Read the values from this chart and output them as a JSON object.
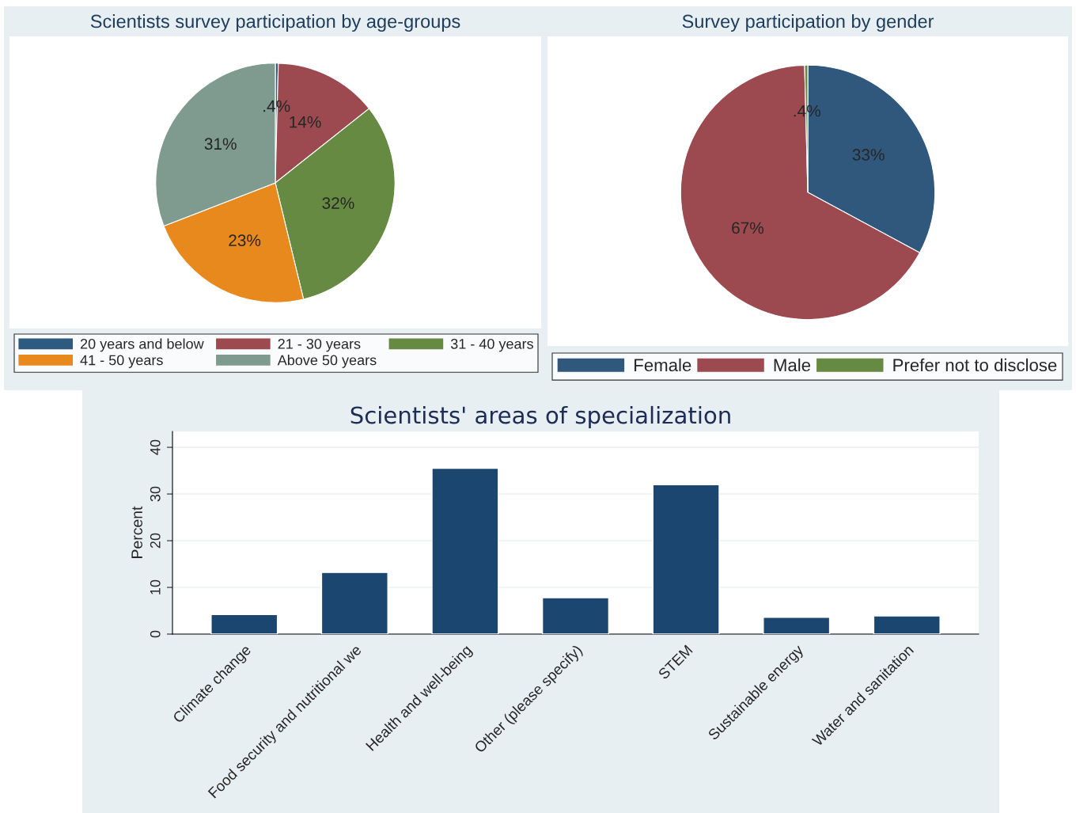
{
  "chart_data": [
    {
      "type": "pie",
      "title": "Scientists survey participation by age-groups",
      "categories": [
        "20 years and below",
        "21 - 30 years",
        "31 - 40 years",
        "41 - 50 years",
        "Above 50 years"
      ],
      "values": [
        0.4,
        14,
        32,
        23,
        31
      ],
      "colors": [
        "#2f5a80",
        "#9c4a50",
        "#668a42",
        "#e8891e",
        "#7f9a8e"
      ],
      "value_labels": [
        ".4%",
        "14%",
        "32%",
        "23%",
        "31%"
      ],
      "legend": "bottom"
    },
    {
      "type": "pie",
      "title": "Survey participation by gender",
      "categories": [
        "Female",
        "Male",
        "Prefer not to disclose"
      ],
      "values": [
        33,
        67,
        0.4
      ],
      "colors": [
        "#30587c",
        "#9c4a50",
        "#668a42"
      ],
      "value_labels": [
        "33%",
        "67%",
        ".4%"
      ],
      "legend": "bottom"
    },
    {
      "type": "bar",
      "title": "Scientists' areas of specialization",
      "ylabel": "Percent",
      "categories": [
        "Climate change",
        "Food security and nutritional we",
        "Health and well-being",
        "Other (please specify)",
        "STEM",
        "Sustainable energy",
        "Water and sanitation"
      ],
      "values": [
        4.2,
        13.2,
        35.5,
        7.8,
        32.0,
        3.6,
        3.9
      ],
      "color": "#1a4670",
      "ylim": [
        0,
        43.4
      ],
      "yticks": [
        0,
        10,
        20,
        30,
        40
      ],
      "grid": "y"
    }
  ]
}
